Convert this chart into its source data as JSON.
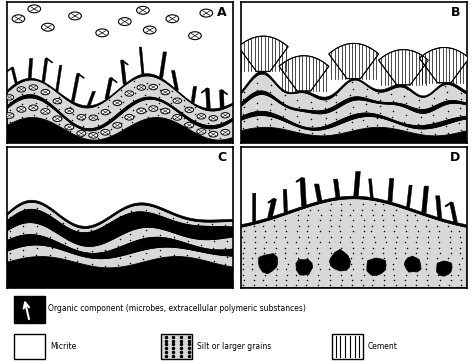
{
  "bg_color": "#ffffff",
  "panel_labels": [
    "A",
    "B",
    "C",
    "D"
  ],
  "fig_width": 4.74,
  "fig_height": 3.64,
  "dpi": 100,
  "stipple_color": "#d8d8d8",
  "legend_organic_label": "Organic component (microbes, extracellular polymeric substances)",
  "legend_micrite_label": "Micrite",
  "legend_silt_label": "Silt or larger grains",
  "legend_cement_label": "Cement"
}
